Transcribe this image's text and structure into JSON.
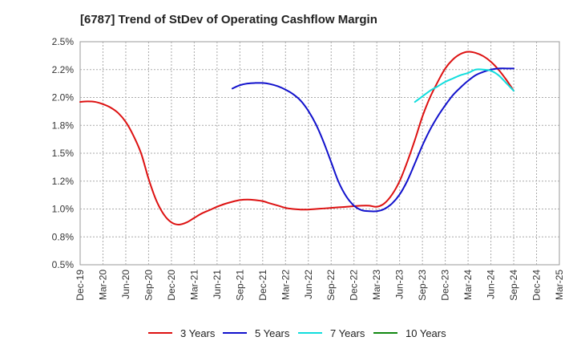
{
  "chart_data": {
    "type": "line",
    "title": "[6787]  Trend of StDev of Operating Cashflow Margin",
    "xlabel": "",
    "ylabel": "",
    "x_ticks": [
      "Dec-19",
      "Mar-20",
      "Jun-20",
      "Sep-20",
      "Dec-20",
      "Mar-21",
      "Jun-21",
      "Sep-21",
      "Dec-21",
      "Mar-22",
      "Jun-22",
      "Sep-22",
      "Dec-22",
      "Mar-23",
      "Jun-23",
      "Sep-23",
      "Dec-23",
      "Mar-24",
      "Jun-24",
      "Sep-24",
      "Dec-24",
      "Mar-25"
    ],
    "y_ticks": [
      "0.5%",
      "0.8%",
      "1.0%",
      "1.2%",
      "1.5%",
      "1.8%",
      "2.0%",
      "2.2%",
      "2.5%"
    ],
    "ylim": [
      0.5,
      2.5
    ],
    "grid": true,
    "legend_position": "bottom",
    "colors": {
      "3 Years": "#dd1111",
      "5 Years": "#1111cc",
      "7 Years": "#11dddd",
      "10 Years": "#118811"
    },
    "series": [
      {
        "name": "3 Years",
        "color": "#dd1111",
        "points": [
          [
            0,
            1.96
          ],
          [
            0.33,
            1.965
          ],
          [
            0.67,
            1.96
          ],
          [
            1,
            1.94
          ],
          [
            1.33,
            1.91
          ],
          [
            1.67,
            1.86
          ],
          [
            2,
            1.78
          ],
          [
            2.33,
            1.66
          ],
          [
            2.67,
            1.5
          ],
          [
            3,
            1.27
          ],
          [
            3.33,
            1.08
          ],
          [
            3.67,
            0.95
          ],
          [
            4,
            0.88
          ],
          [
            4.33,
            0.86
          ],
          [
            4.67,
            0.88
          ],
          [
            5,
            0.92
          ],
          [
            5.33,
            0.96
          ],
          [
            5.67,
            0.99
          ],
          [
            6,
            1.02
          ],
          [
            6.33,
            1.045
          ],
          [
            6.67,
            1.065
          ],
          [
            7,
            1.08
          ],
          [
            7.33,
            1.085
          ],
          [
            7.67,
            1.08
          ],
          [
            8,
            1.07
          ],
          [
            8.33,
            1.05
          ],
          [
            8.67,
            1.03
          ],
          [
            9,
            1.01
          ],
          [
            9.33,
            1.0
          ],
          [
            9.67,
            0.995
          ],
          [
            10,
            0.995
          ],
          [
            10.33,
            1.0
          ],
          [
            10.67,
            1.005
          ],
          [
            11,
            1.01
          ],
          [
            11.33,
            1.015
          ],
          [
            11.67,
            1.02
          ],
          [
            12,
            1.025
          ],
          [
            12.33,
            1.03
          ],
          [
            12.67,
            1.03
          ],
          [
            13,
            1.02
          ],
          [
            13.33,
            1.05
          ],
          [
            13.67,
            1.13
          ],
          [
            14,
            1.25
          ],
          [
            14.33,
            1.42
          ],
          [
            14.67,
            1.62
          ],
          [
            15,
            1.83
          ],
          [
            15.33,
            2.0
          ],
          [
            15.67,
            2.14
          ],
          [
            16,
            2.26
          ],
          [
            16.33,
            2.34
          ],
          [
            16.67,
            2.39
          ],
          [
            17,
            2.41
          ],
          [
            17.33,
            2.4
          ],
          [
            17.67,
            2.37
          ],
          [
            18,
            2.32
          ],
          [
            18.33,
            2.25
          ],
          [
            18.67,
            2.16
          ],
          [
            19,
            2.06
          ]
        ]
      },
      {
        "name": "5 Years",
        "color": "#1111cc",
        "points": [
          [
            6.67,
            2.08
          ],
          [
            7,
            2.11
          ],
          [
            7.33,
            2.125
          ],
          [
            7.67,
            2.13
          ],
          [
            8,
            2.13
          ],
          [
            8.33,
            2.12
          ],
          [
            8.67,
            2.1
          ],
          [
            9,
            2.07
          ],
          [
            9.33,
            2.03
          ],
          [
            9.67,
            1.97
          ],
          [
            10,
            1.88
          ],
          [
            10.33,
            1.76
          ],
          [
            10.67,
            1.6
          ],
          [
            11,
            1.42
          ],
          [
            11.33,
            1.24
          ],
          [
            11.67,
            1.11
          ],
          [
            12,
            1.03
          ],
          [
            12.33,
            0.99
          ],
          [
            12.67,
            0.98
          ],
          [
            13,
            0.98
          ],
          [
            13.33,
            1.0
          ],
          [
            13.67,
            1.05
          ],
          [
            14,
            1.13
          ],
          [
            14.33,
            1.25
          ],
          [
            14.67,
            1.41
          ],
          [
            15,
            1.57
          ],
          [
            15.33,
            1.71
          ],
          [
            15.67,
            1.83
          ],
          [
            16,
            1.93
          ],
          [
            16.33,
            2.02
          ],
          [
            16.67,
            2.09
          ],
          [
            17,
            2.15
          ],
          [
            17.33,
            2.2
          ],
          [
            17.67,
            2.23
          ],
          [
            18,
            2.25
          ],
          [
            18.33,
            2.26
          ],
          [
            18.67,
            2.26
          ],
          [
            19,
            2.26
          ]
        ]
      },
      {
        "name": "7 Years",
        "color": "#11dddd",
        "points": [
          [
            14.67,
            1.96
          ],
          [
            15,
            2.01
          ],
          [
            15.33,
            2.06
          ],
          [
            15.67,
            2.1
          ],
          [
            16,
            2.14
          ],
          [
            16.33,
            2.17
          ],
          [
            16.67,
            2.2
          ],
          [
            17,
            2.22
          ],
          [
            17.33,
            2.25
          ],
          [
            17.67,
            2.25
          ],
          [
            18,
            2.24
          ],
          [
            18.33,
            2.2
          ],
          [
            18.67,
            2.13
          ],
          [
            19,
            2.06
          ]
        ]
      },
      {
        "name": "10 Years",
        "color": "#118811",
        "points": []
      }
    ]
  }
}
